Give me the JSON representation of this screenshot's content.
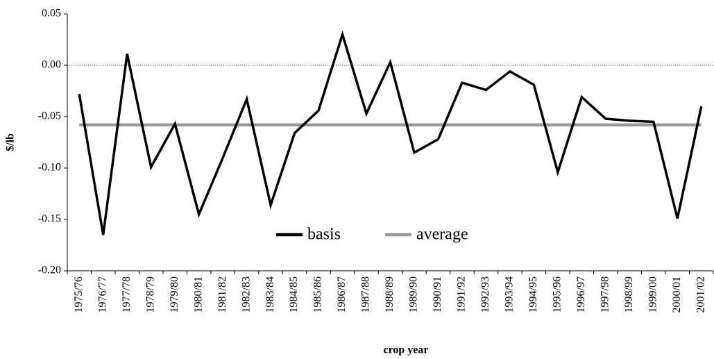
{
  "chart_data": {
    "type": "line",
    "x_label": "crop year",
    "y_label": "$/lb",
    "categories": [
      "1975/76",
      "1976/77",
      "1977/78",
      "1978/79",
      "1979/80",
      "1980/81",
      "1981/82",
      "1982/83",
      "1983/84",
      "1984/85",
      "1985/86",
      "1986/87",
      "1987/88",
      "1988/89",
      "1989/90",
      "1990/91",
      "1991/92",
      "1992/93",
      "1993/94",
      "1994/95",
      "1995/96",
      "1996/97",
      "1997/98",
      "1998/99",
      "1999/00",
      "2000/01",
      "2001/02"
    ],
    "series": [
      {
        "name": "basis",
        "color": "#000000",
        "values": [
          -0.028,
          -0.165,
          0.011,
          -0.099,
          -0.057,
          -0.145,
          -0.09,
          -0.033,
          -0.136,
          -0.066,
          -0.044,
          0.03,
          -0.047,
          0.003,
          -0.085,
          -0.072,
          -0.017,
          -0.024,
          -0.006,
          -0.019,
          -0.104,
          -0.031,
          -0.052,
          -0.054,
          -0.055,
          -0.149,
          -0.04
        ]
      },
      {
        "name": "average",
        "color": "#999999",
        "values": [
          -0.058,
          -0.058,
          -0.058,
          -0.058,
          -0.058,
          -0.058,
          -0.058,
          -0.058,
          -0.058,
          -0.058,
          -0.058,
          -0.058,
          -0.058,
          -0.058,
          -0.058,
          -0.058,
          -0.058,
          -0.058,
          -0.058,
          -0.058,
          -0.058,
          -0.058,
          -0.058,
          -0.058,
          -0.058,
          -0.058,
          -0.058
        ]
      }
    ],
    "ylim": [
      -0.2,
      0.05
    ],
    "yticks": [
      {
        "value": -0.2,
        "label": "-0.20"
      },
      {
        "value": -0.15,
        "label": "-0.15"
      },
      {
        "value": -0.1,
        "label": "-0.10"
      },
      {
        "value": -0.05,
        "label": "-0.05"
      },
      {
        "value": 0,
        "label": "0.00"
      },
      {
        "value": 0.05,
        "label": "0.05"
      }
    ],
    "zero_line": true
  }
}
